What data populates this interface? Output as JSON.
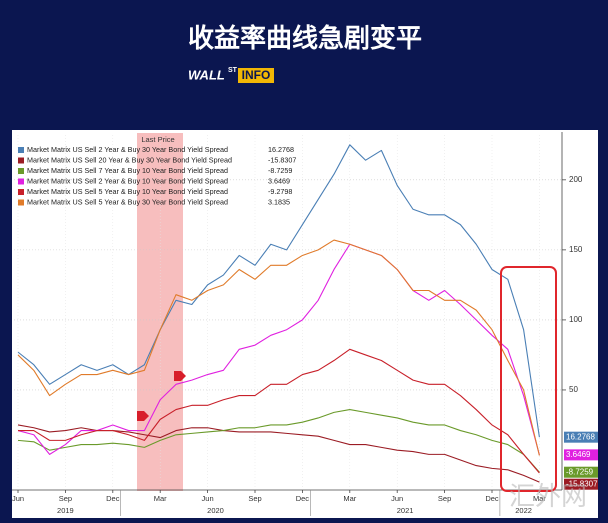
{
  "header": {
    "title": "收益率曲线急剧变平",
    "logo_main": "WALL",
    "logo_sup": "ST",
    "logo_box": "INFO"
  },
  "watermark": "汇外网",
  "chart_data": {
    "type": "line",
    "legend_title": "Last Price",
    "x": [
      "2019-06",
      "2019-07",
      "2019-08",
      "2019-09",
      "2019-10",
      "2019-11",
      "2019-12",
      "2020-01",
      "2020-02",
      "2020-03",
      "2020-04",
      "2020-05",
      "2020-06",
      "2020-07",
      "2020-08",
      "2020-09",
      "2020-10",
      "2020-11",
      "2020-12",
      "2021-01",
      "2021-02",
      "2021-03",
      "2021-04",
      "2021-05",
      "2021-06",
      "2021-07",
      "2021-08",
      "2021-09",
      "2021-10",
      "2021-11",
      "2021-12",
      "2022-01",
      "2022-02",
      "2022-03"
    ],
    "xticks": [
      {
        "value": "2019-06",
        "label": "Jun"
      },
      {
        "value": "2019-09",
        "label": "Sep"
      },
      {
        "value": "2019-12",
        "label": "Dec"
      },
      {
        "value": "2020-03",
        "label": "Mar"
      },
      {
        "value": "2020-06",
        "label": "Jun"
      },
      {
        "value": "2020-09",
        "label": "Sep"
      },
      {
        "value": "2020-12",
        "label": "Dec"
      },
      {
        "value": "2021-03",
        "label": "Mar"
      },
      {
        "value": "2021-06",
        "label": "Jun"
      },
      {
        "value": "2021-09",
        "label": "Sep"
      },
      {
        "value": "2021-12",
        "label": "Dec"
      },
      {
        "value": "2022-03",
        "label": "Mar"
      }
    ],
    "year_labels": [
      "2019",
      "2020",
      "2021",
      "2022"
    ],
    "ylim": [
      -20,
      232
    ],
    "yticks": [
      50,
      100,
      150,
      200
    ],
    "grid": true,
    "legend": "top-left",
    "series": [
      {
        "name": "Market Matrix US Sell 2 Year & Buy 30 Year Bond Yield Spread",
        "color": "#4a7fb5",
        "end_label": true,
        "values": [
          77,
          68,
          54,
          61,
          68,
          64,
          68,
          61,
          68,
          93,
          114,
          111,
          125,
          132,
          146,
          139,
          154,
          150,
          168,
          186,
          204,
          225,
          214,
          221,
          196,
          179,
          175,
          175,
          168,
          154,
          136,
          129,
          93,
          16.2768
        ]
      },
      {
        "name": "Market Matrix US Sell 20 Year & Buy 30 Year Bond Yield Spread",
        "color": "#9b1c24",
        "end_label": true,
        "values": [
          25,
          23,
          20,
          21,
          23,
          21,
          21,
          20,
          18,
          16,
          21,
          23,
          23,
          21,
          20,
          20,
          20,
          19,
          18,
          17,
          14,
          11,
          11,
          9,
          7,
          6,
          4,
          4,
          0,
          -4,
          -6,
          -7,
          -11,
          -15.8307
        ]
      },
      {
        "name": "Market Matrix US Sell 7 Year & Buy 10 Year Bond Yield Spread",
        "color": "#6a9a2a",
        "end_label": true,
        "values": [
          14,
          13,
          7,
          9,
          11,
          11,
          12,
          11,
          9,
          14,
          18,
          19,
          20,
          21,
          23,
          23,
          25,
          25,
          27,
          30,
          34,
          36,
          34,
          32,
          30,
          27,
          25,
          25,
          21,
          18,
          14,
          11,
          4,
          -8.7259
        ]
      },
      {
        "name": "Market Matrix US Sell 2 Year & Buy 10 Year Bond Yield Spread",
        "color": "#e020e0",
        "end_label": true,
        "values": [
          21,
          18,
          4,
          11,
          21,
          21,
          25,
          21,
          21,
          43,
          54,
          57,
          61,
          64,
          79,
          82,
          89,
          93,
          100,
          114,
          136,
          154,
          150,
          146,
          136,
          121,
          114,
          121,
          111,
          100,
          89,
          79,
          46,
          3.6469
        ]
      },
      {
        "name": "Market Matrix US Sell 5 Year & Buy 10 Year Bond Yield Spread",
        "color": "#c8202a",
        "end_label": false,
        "values": [
          21,
          21,
          14,
          14,
          18,
          21,
          21,
          18,
          14,
          29,
          36,
          39,
          39,
          43,
          46,
          46,
          54,
          54,
          61,
          64,
          71,
          79,
          75,
          71,
          64,
          57,
          54,
          54,
          46,
          36,
          25,
          18,
          4,
          -9.2798
        ]
      },
      {
        "name": "Market Matrix US Sell 5 Year & Buy 30 Year Bond Yield Spread",
        "color": "#e07b2a",
        "end_label": false,
        "values": [
          75,
          64,
          46,
          54,
          61,
          61,
          64,
          61,
          64,
          93,
          118,
          114,
          121,
          125,
          136,
          129,
          139,
          139,
          146,
          150,
          157,
          154,
          150,
          146,
          136,
          121,
          121,
          114,
          114,
          107,
          93,
          71,
          50,
          3.1835
        ]
      }
    ]
  }
}
